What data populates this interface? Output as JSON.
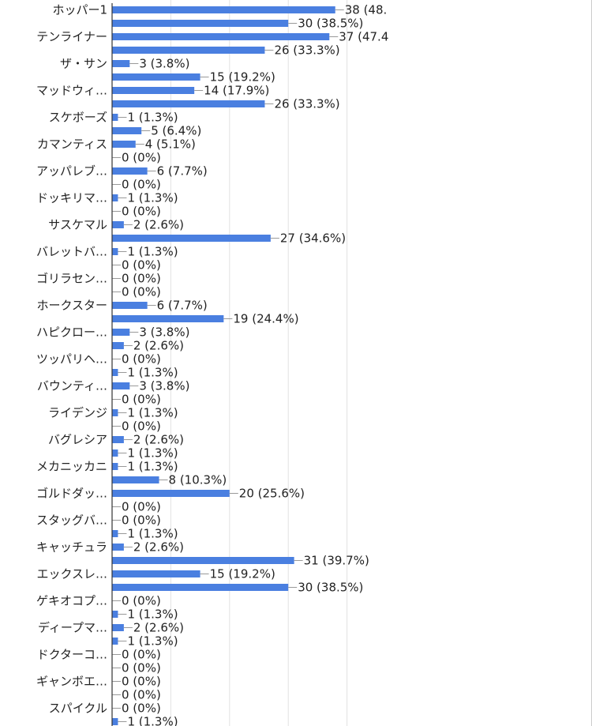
{
  "chart_data": {
    "type": "bar",
    "orientation": "horizontal",
    "categories": [
      "ホッパー1",
      "",
      "テンライナー",
      "",
      "ザ・サン",
      "",
      "マッドウィ…",
      "",
      "スケボーズ",
      "",
      "カマンティス",
      "",
      "アッパレブ…",
      "",
      "ドッキリマ…",
      "",
      "サスケマル",
      "",
      "バレットバ…",
      "",
      "ゴリラセン…",
      "",
      "ホークスター",
      "",
      "ハピクロー…",
      "",
      "ツッパリヘ…",
      "",
      "バウンティ…",
      "",
      "ライデンジ",
      "",
      "バグレシア",
      "",
      "メカニッカニ",
      "",
      "ゴルドダッ…",
      "",
      "スタッグバ…",
      "",
      "キャッチュラ",
      "",
      "エックスレ…",
      "",
      "ゲキオコプ…",
      "",
      "ディープマ…",
      "",
      "ドクターコ…",
      "",
      "ギャンボエ…",
      "",
      "スパイクル",
      ""
    ],
    "values": [
      38,
      30,
      37,
      26,
      3,
      15,
      14,
      26,
      1,
      5,
      4,
      0,
      6,
      0,
      1,
      0,
      2,
      27,
      1,
      0,
      0,
      0,
      6,
      19,
      3,
      2,
      0,
      1,
      3,
      0,
      1,
      0,
      2,
      1,
      1,
      8,
      20,
      0,
      0,
      1,
      2,
      31,
      15,
      30,
      0,
      1,
      2,
      1,
      0,
      0,
      0,
      0,
      0,
      1
    ],
    "value_labels": [
      "38 (48.",
      "30 (38.5%)",
      "37 (47.4",
      "26 (33.3%)",
      "3 (3.8%)",
      "15 (19.2%)",
      "14 (17.9%)",
      "26 (33.3%)",
      "1 (1.3%)",
      "5 (6.4%)",
      "4 (5.1%)",
      "0 (0%)",
      "6 (7.7%)",
      "0 (0%)",
      "1 (1.3%)",
      "0 (0%)",
      "2 (2.6%)",
      "27 (34.6%)",
      "1 (1.3%)",
      "0 (0%)",
      "0 (0%)",
      "0 (0%)",
      "6 (7.7%)",
      "19 (24.4%)",
      "3 (3.8%)",
      "2 (2.6%)",
      "0 (0%)",
      "1 (1.3%)",
      "3 (3.8%)",
      "0 (0%)",
      "1 (1.3%)",
      "0 (0%)",
      "2 (2.6%)",
      "1 (1.3%)",
      "1 (1.3%)",
      "8 (10.3%)",
      "20 (25.6%)",
      "0 (0%)",
      "0 (0%)",
      "1 (1.3%)",
      "2 (2.6%)",
      "31 (39.7%)",
      "15 (19.2%)",
      "30 (38.5%)",
      "0 (0%)",
      "1 (1.3%)",
      "2 (2.6%)",
      "1 (1.3%)",
      "0 (0%)",
      "0 (0%)",
      "0 (0%)",
      "0 (0%)",
      "0 (0%)",
      "1 (1.3%)"
    ],
    "title": "",
    "xlabel": "",
    "ylabel": "",
    "xlim": [
      0,
      40
    ],
    "grid": true,
    "legend": "none",
    "colors": {
      "bar": "#4a7fe0",
      "grid": "#e2e2e2",
      "axis": "#333333",
      "leader": "#999999"
    }
  }
}
